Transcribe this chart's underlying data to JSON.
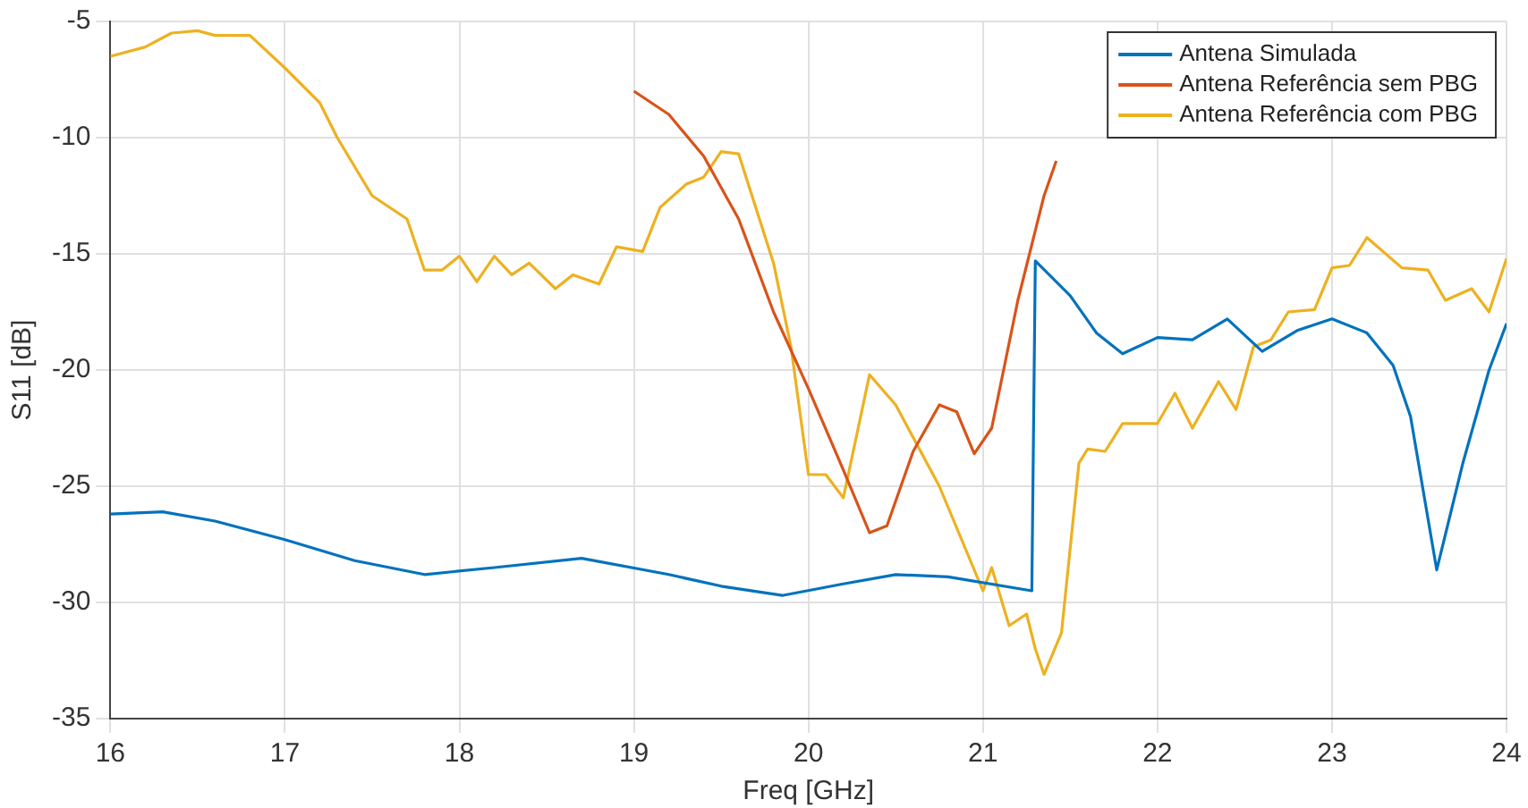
{
  "chart_data": {
    "type": "line",
    "xlabel": "Freq [GHz]",
    "ylabel": "S11 [dB]",
    "xlim": [
      16,
      24
    ],
    "xticks": [
      16,
      17,
      18,
      19,
      20,
      21,
      22,
      23,
      24
    ],
    "ylim": [
      -35,
      -5
    ],
    "yticks": [
      -35,
      -30,
      -25,
      -20,
      -15,
      -10,
      -5
    ],
    "grid": true,
    "legend": "top right",
    "marker": "none",
    "line_style": "solid",
    "series": [
      {
        "name": "Antena Simulada",
        "color": "#0072bd",
        "x": [
          16,
          16.3,
          16.6,
          17,
          17.4,
          17.8,
          18.2,
          18.7,
          19.2,
          19.5,
          19.85,
          20.2,
          20.5,
          20.8,
          21.28,
          21.3,
          21.5,
          21.65,
          21.8,
          22.0,
          22.2,
          22.4,
          22.6,
          22.8,
          23.0,
          23.2,
          23.35,
          23.45,
          23.6,
          23.75,
          23.9,
          24
        ],
        "values": [
          -26.2,
          -26.1,
          -26.5,
          -27.3,
          -28.2,
          -28.8,
          -28.5,
          -28.1,
          -28.8,
          -29.3,
          -29.7,
          -29.2,
          -28.8,
          -28.9,
          -29.5,
          -15.3,
          -16.8,
          -18.4,
          -19.3,
          -18.6,
          -18.7,
          -17.8,
          -19.2,
          -18.3,
          -17.8,
          -18.4,
          -19.8,
          -22,
          -28.6,
          -24,
          -20,
          -18.0
        ]
      },
      {
        "name": "Antena Referência sem PBG",
        "color": "#d95319",
        "x": [
          19,
          19.2,
          19.4,
          19.6,
          19.8,
          20.0,
          20.2,
          20.35,
          20.45,
          20.6,
          20.75,
          20.85,
          20.95,
          21.05,
          21.2,
          21.35,
          21.42
        ],
        "values": [
          -8,
          -9,
          -10.8,
          -13.5,
          -17.5,
          -20.8,
          -24.3,
          -27.0,
          -26.7,
          -23.5,
          -21.5,
          -21.8,
          -23.6,
          -22.5,
          -17,
          -12.5,
          -11
        ]
      },
      {
        "name": "Antena Referência com PBG",
        "color": "#edb120",
        "x": [
          16,
          16.2,
          16.35,
          16.5,
          16.6,
          16.8,
          17,
          17.2,
          17.3,
          17.5,
          17.7,
          17.8,
          17.9,
          18.0,
          18.1,
          18.2,
          18.3,
          18.4,
          18.55,
          18.65,
          18.8,
          18.9,
          19.05,
          19.15,
          19.3,
          19.4,
          19.5,
          19.6,
          19.8,
          19.9,
          20.0,
          20.1,
          20.2,
          20.35,
          20.5,
          20.75,
          21.0,
          21.05,
          21.15,
          21.25,
          21.3,
          21.35,
          21.45,
          21.55,
          21.6,
          21.7,
          21.8,
          21.9,
          22.0,
          22.1,
          22.2,
          22.35,
          22.45,
          22.55,
          22.65,
          22.75,
          22.9,
          23.0,
          23.1,
          23.2,
          23.4,
          23.55,
          23.65,
          23.8,
          23.9,
          24
        ],
        "values": [
          -6.5,
          -6.1,
          -5.5,
          -5.4,
          -5.6,
          -5.6,
          -7,
          -8.5,
          -10,
          -12.5,
          -13.5,
          -15.7,
          -15.7,
          -15.1,
          -16.2,
          -15.1,
          -15.9,
          -15.4,
          -16.5,
          -15.9,
          -16.3,
          -14.7,
          -14.9,
          -13,
          -12.0,
          -11.7,
          -10.6,
          -10.7,
          -15.4,
          -19,
          -24.5,
          -24.5,
          -25.5,
          -20.2,
          -21.5,
          -25,
          -29.5,
          -28.5,
          -31,
          -30.5,
          -32,
          -33.1,
          -31.3,
          -24,
          -23.4,
          -23.5,
          -22.3,
          -22.3,
          -22.3,
          -21,
          -22.5,
          -20.5,
          -21.7,
          -19,
          -18.7,
          -17.5,
          -17.4,
          -15.6,
          -15.5,
          -14.3,
          -15.6,
          -15.7,
          -17,
          -16.5,
          -17.5,
          -15.2
        ]
      }
    ]
  }
}
